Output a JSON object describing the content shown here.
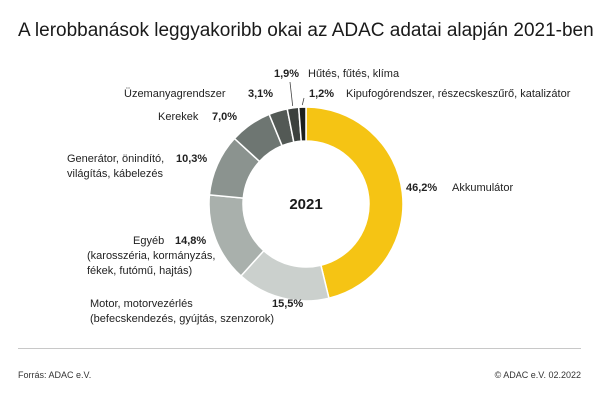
{
  "title": "A lerobbanások leggyakoribb okai az ADAC adatai alapján 2021-ben",
  "footer": {
    "source": "Forrás: ADAC e.V.",
    "credit": "© ADAC e.V. 02.2022"
  },
  "chart_data": {
    "type": "pie",
    "donut": true,
    "center_label": "2021",
    "slices": [
      {
        "label": "Akkumulátor",
        "value": 46.2,
        "value_label": "46,2%",
        "color": "#f5c414"
      },
      {
        "label": "Motor, motorvezérlés (befecskendezés, gyújtás, szenzorok)",
        "label_lines": [
          "Motor, motorvezérlés",
          "(befecskendezés, gyújtás, szenzorok)"
        ],
        "value": 15.5,
        "value_label": "15,5%",
        "color": "#cbd0cd"
      },
      {
        "label": "Egyéb (karosszéria, kormányzás, fékek, futómű, hajtás)",
        "label_lines": [
          "Egyéb",
          "(karosszéria, kormányzás,",
          "fékek, futómű, hajtás)"
        ],
        "value": 14.8,
        "value_label": "14,8%",
        "color": "#a9b0ac"
      },
      {
        "label": "Generátor, önindító, világítás, kábelezés",
        "label_lines": [
          "Generátor, önindító,",
          "világítás, kábelezés"
        ],
        "value": 10.3,
        "value_label": "10,3%",
        "color": "#8b938f"
      },
      {
        "label": "Kerekek",
        "value": 7.0,
        "value_label": "7,0%",
        "color": "#6e7672"
      },
      {
        "label": "Üzemanyagrendszer",
        "value": 3.1,
        "value_label": "3,1%",
        "color": "#535955"
      },
      {
        "label": "Hűtés, fűtés, klíma",
        "value": 1.9,
        "value_label": "1,9%",
        "color": "#3b403d"
      },
      {
        "label": "Kipufogórendszer, részecskeszűrő, katalizátor",
        "value": 1.2,
        "value_label": "1,2%",
        "color": "#1c1f1d"
      }
    ]
  }
}
